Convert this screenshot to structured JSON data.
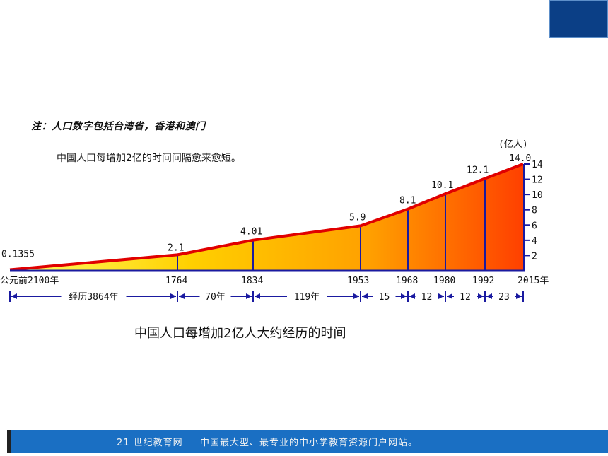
{
  "note": "注：人口数字包括台湾省，香港和澳门",
  "subtitle": "中国人口每增加2亿的时间间隔愈来愈短。",
  "caption": "中国人口每增加2亿人大约经历的时间",
  "footer": "21 世纪教育网 — 中国最大型、最专业的中小学教育资源门户网站。",
  "chart_data": {
    "type": "area",
    "unit_label": "(亿人)",
    "points": [
      {
        "year_label": "公元前2100年",
        "value": 0.1355,
        "value_label": "0.1355"
      },
      {
        "year_label": "1764",
        "value": 2.1,
        "value_label": "2.1"
      },
      {
        "year_label": "1834",
        "value": 4.01,
        "value_label": "4.01"
      },
      {
        "year_label": "1953",
        "value": 5.9,
        "value_label": "5.9"
      },
      {
        "year_label": "1968",
        "value": 8.1,
        "value_label": "8.1"
      },
      {
        "year_label": "1980",
        "value": 10.1,
        "value_label": "10.1"
      },
      {
        "year_label": "1992",
        "value": 12.1,
        "value_label": "12.1"
      },
      {
        "year_label": "2015年",
        "value": 14.0,
        "value_label": "14.0"
      }
    ],
    "y_ticks": [
      2,
      4,
      6,
      8,
      10,
      12,
      14
    ],
    "ylim": [
      0,
      14
    ],
    "intervals": [
      "经历3864年",
      "70年",
      "119年",
      "15",
      "12",
      "12",
      "23"
    ],
    "colors": {
      "low": "#ffff66",
      "mid": "#ffb000",
      "high": "#ff4000",
      "line": "#e00000",
      "axis": "#1a1aa0"
    }
  }
}
